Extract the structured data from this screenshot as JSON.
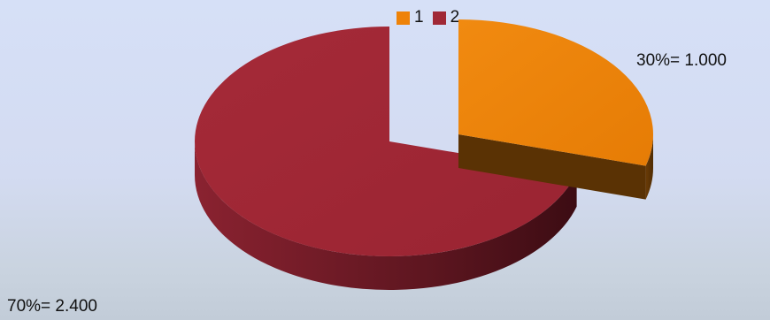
{
  "chart_data": {
    "type": "pie",
    "style": "3d-exploded",
    "categories": [
      "1",
      "2"
    ],
    "values": [
      1000,
      2400
    ],
    "percentages": [
      30,
      70
    ],
    "data_labels": [
      "30%= 1.000",
      "70%= 2.400"
    ],
    "legend": {
      "position": "top",
      "entries": [
        "1",
        "2"
      ]
    },
    "colors": {
      "1": {
        "top": "#ee8208",
        "side": "#5e3505"
      },
      "2": {
        "top": "#a02836",
        "side": "#4a1118"
      }
    }
  }
}
